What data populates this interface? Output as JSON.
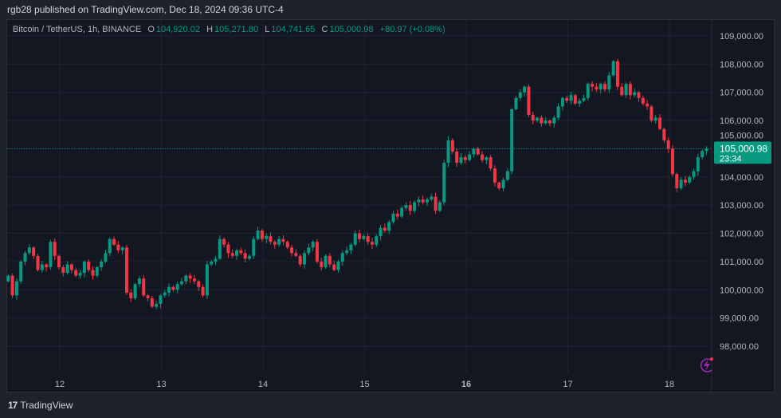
{
  "header": {
    "published": "rgb28 published on TradingView.com, Dec 18, 2024 09:36 UTC-4"
  },
  "legend": {
    "symbol": "Bitcoin / TetherUS, 1h, BINANCE",
    "o_label": "O",
    "o": "104,920.02",
    "h_label": "H",
    "h": "105,271.80",
    "l_label": "L",
    "l": "104,741.65",
    "c_label": "C",
    "c": "105,000.98",
    "change": "+80.97 (+0.08%)"
  },
  "price_tag": {
    "price": "105,000.98",
    "countdown": "23:34"
  },
  "footer": {
    "brand": "TradingView",
    "logo": "17"
  },
  "colors": {
    "up": "#089981",
    "down": "#f23645",
    "background": "#131722",
    "grid": "#1f2330",
    "bolt": "#9c27b0"
  },
  "icons": {
    "bolt": "lightning-bolt-icon"
  },
  "chart_data": {
    "type": "candlestick",
    "interval": "1h",
    "start": "Dec 11 12:00",
    "ylim": [
      97400,
      109400
    ],
    "y_ticks": [
      "109,000.00",
      "108,000.00",
      "107,000.00",
      "106,000.00",
      "105,000.00",
      "104,000.00",
      "103,000.00",
      "102,000.00",
      "101,000.00",
      "100,000.00",
      "99,000.00",
      "98,000.00"
    ],
    "y_tick_values": [
      109000,
      108000,
      107000,
      106000,
      105000,
      104000,
      103000,
      102000,
      101000,
      100000,
      99000,
      98000
    ],
    "x_ticks": [
      "12",
      "13",
      "14",
      "15",
      "16",
      "17",
      "18"
    ],
    "last_price": 105000.98,
    "first_open": 100300,
    "closes": [
      100500,
      99800,
      100300,
      101000,
      101300,
      101500,
      101200,
      100700,
      100900,
      100800,
      101700,
      101200,
      100800,
      100600,
      100900,
      100700,
      100500,
      100600,
      101000,
      100700,
      100500,
      100800,
      101000,
      101300,
      101800,
      101600,
      101400,
      101500,
      99900,
      99700,
      100200,
      100400,
      99800,
      99700,
      99400,
      99500,
      99800,
      99900,
      100100,
      100000,
      100200,
      100300,
      100500,
      100400,
      100300,
      100100,
      99800,
      100900,
      101000,
      101100,
      101800,
      101600,
      101300,
      101200,
      101400,
      101300,
      101100,
      101200,
      101800,
      102100,
      101800,
      101900,
      101700,
      101600,
      101800,
      101700,
      101500,
      101300,
      101200,
      100900,
      101300,
      101500,
      101700,
      101000,
      100800,
      101200,
      100900,
      100700,
      101000,
      101300,
      101400,
      101600,
      102000,
      101800,
      101900,
      101700,
      101600,
      101900,
      102200,
      102100,
      102400,
      102700,
      102600,
      102900,
      103000,
      102800,
      103100,
      103200,
      103100,
      103200,
      103300,
      102800,
      103100,
      104500,
      105300,
      104900,
      104500,
      104700,
      104600,
      104800,
      105000,
      104800,
      104600,
      104700,
      104300,
      103800,
      103600,
      103900,
      104200,
      106400,
      106800,
      107000,
      107200,
      106200,
      106000,
      106100,
      105900,
      106000,
      105900,
      106100,
      106500,
      106800,
      106700,
      106900,
      106600,
      106700,
      106800,
      107300,
      107200,
      107100,
      107300,
      107100,
      107600,
      108100,
      107200,
      106900,
      107300,
      106900,
      107000,
      106800,
      106600,
      106500,
      106000,
      106100,
      105700,
      105300,
      105000,
      104100,
      103600,
      103900,
      103800,
      104000,
      104200,
      104700,
      104920,
      105000.98
    ]
  }
}
